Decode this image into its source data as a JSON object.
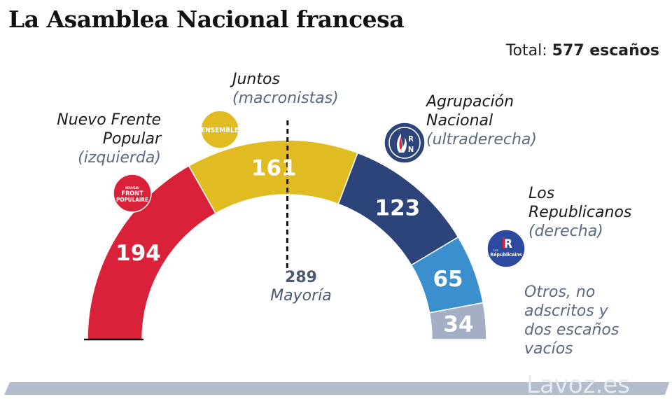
{
  "header": {
    "title": "La Asamblea Nacional francesa",
    "total_prefix": "Total:",
    "total_value": "577 escaños"
  },
  "chart_data": {
    "type": "pie",
    "subtype": "hemicycle",
    "title": "La Asamblea Nacional francesa",
    "total": 577,
    "majority": {
      "value": 289,
      "value_label": "289",
      "label": "Mayoría"
    },
    "series": [
      {
        "name": "Nuevo Frente Popular",
        "sub": "(izquierda)",
        "value": 194,
        "value_label": "194",
        "color": "#d9223a",
        "logo": "FRONT POPULAIRE"
      },
      {
        "name": "Juntos",
        "sub": "(macronistas)",
        "value": 161,
        "value_label": "161",
        "color": "#e0bb22",
        "logo": "ENSEMBLE"
      },
      {
        "name": "Agrupación Nacional",
        "sub": "(ultraderecha)",
        "value": 123,
        "value_label": "123",
        "color": "#2c4479",
        "logo": "RN"
      },
      {
        "name": "Los Republicanos",
        "sub": "(derecha)",
        "value": 65,
        "value_label": "65",
        "color": "#3b8fcc",
        "logo": "Les Républicains"
      },
      {
        "name": "Otros, no adscritos y dos escaños vacíos",
        "sub": "",
        "value": 34,
        "value_label": "34",
        "color": "#a4aec4",
        "logo": ""
      }
    ]
  },
  "labels": {
    "nfp_line1": "Nuevo Frente",
    "nfp_line2": "Popular",
    "nfp_sub": "(izquierda)",
    "ens_line1": "Juntos",
    "ens_sub": "(macronistas)",
    "rn_line1": "Agrupación",
    "rn_line2": "Nacional",
    "rn_sub": "(ultraderecha)",
    "lr_line1": "Los",
    "lr_line2": "Republicanos",
    "lr_sub": "(derecha)",
    "otros_line1": "Otros, no",
    "otros_line2": "adscritos y",
    "otros_line3": "dos escaños",
    "otros_line4": "vacíos"
  },
  "logos": {
    "nfp_small": "NOUVEAU",
    "nfp_top": "FRONT",
    "nfp_bottom": "POPULAIRE",
    "ensemble": "ENSEMBLE",
    "rn_r": "R",
    "rn_n": "N",
    "lr_mark": "R",
    "lr_small": "Les",
    "lr_name": "Républicains"
  },
  "footer": {
    "brand": "Lavoz.es"
  }
}
